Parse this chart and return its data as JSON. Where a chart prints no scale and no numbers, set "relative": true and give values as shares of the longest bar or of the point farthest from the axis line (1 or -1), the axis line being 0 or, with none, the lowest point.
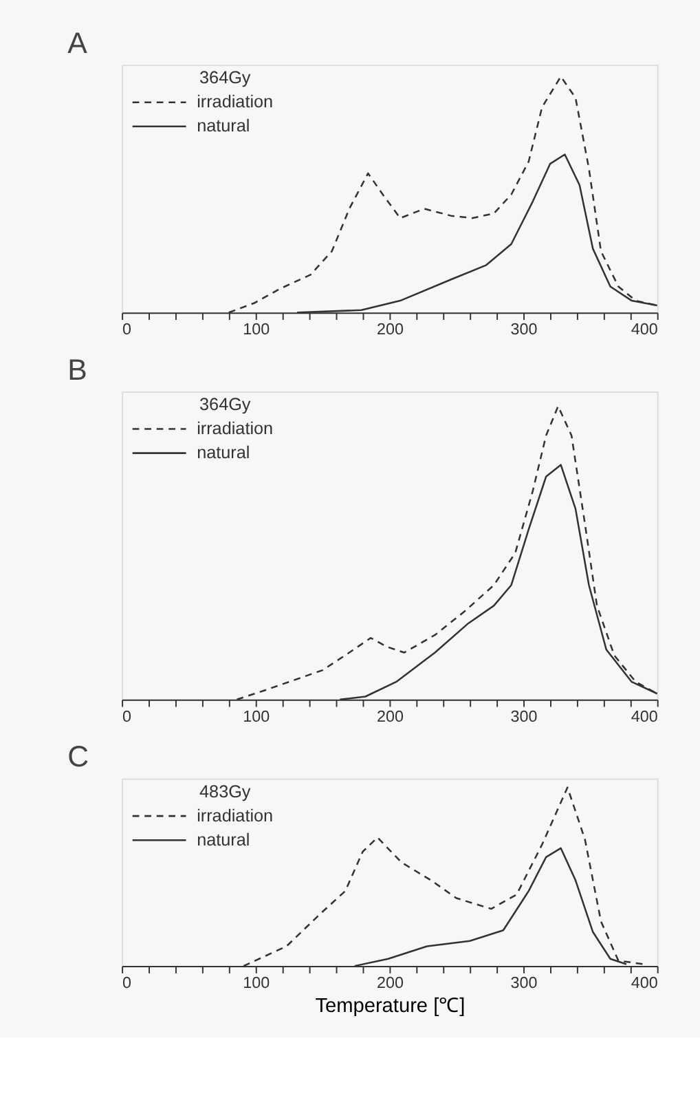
{
  "chart_data": [
    {
      "type": "line",
      "title": "A",
      "relative": true,
      "legend": "top left",
      "legend_title": "364Gy",
      "xlim": [
        0,
        400
      ],
      "xticks": [
        0,
        {
          "value": 20,
          "label": null
        },
        {
          "value": 40,
          "label": null
        },
        {
          "value": 60,
          "label": null
        },
        {
          "value": 80,
          "label": null
        },
        100,
        {
          "value": 120,
          "label": null
        },
        {
          "value": 140,
          "label": null
        },
        {
          "value": 160,
          "label": null
        },
        {
          "value": 180,
          "label": null
        },
        200,
        {
          "value": 220,
          "label": null
        },
        {
          "value": 240,
          "label": null
        },
        {
          "value": 260,
          "label": null
        },
        {
          "value": 280,
          "label": null
        },
        300,
        {
          "value": 320,
          "label": null
        },
        {
          "value": 340,
          "label": null
        },
        {
          "value": 360,
          "label": null
        },
        {
          "value": 380,
          "label": null
        },
        400
      ],
      "series": [
        {
          "name": "irradiation",
          "color": "#333333",
          "line_style": "dashed",
          "x": [
            80,
            99,
            118,
            141,
            157,
            170,
            184,
            195,
            208,
            226,
            246,
            262,
            278,
            291,
            304,
            314,
            328,
            339,
            349,
            358,
            371,
            384,
            400
          ],
          "values": [
            0,
            0.04,
            0.1,
            0.16,
            0.26,
            0.44,
            0.59,
            0.5,
            0.4,
            0.44,
            0.41,
            0.4,
            0.42,
            0.5,
            0.64,
            0.87,
            1.0,
            0.91,
            0.61,
            0.26,
            0.11,
            0.05,
            0.03
          ]
        },
        {
          "name": "natural",
          "color": "#333333",
          "line_style": "solid",
          "x": [
            131,
            179,
            208,
            246,
            272,
            291,
            307,
            320,
            331,
            342,
            352,
            365,
            381,
            400
          ],
          "values": [
            0,
            0.01,
            0.05,
            0.14,
            0.2,
            0.29,
            0.47,
            0.63,
            0.67,
            0.54,
            0.27,
            0.11,
            0.05,
            0.03
          ]
        }
      ]
    },
    {
      "type": "line",
      "title": "B",
      "relative": true,
      "legend": "top left",
      "legend_title": "364Gy",
      "xlim": [
        0,
        400
      ],
      "xticks": [
        0,
        {
          "value": 20,
          "label": null
        },
        {
          "value": 40,
          "label": null
        },
        {
          "value": 60,
          "label": null
        },
        {
          "value": 80,
          "label": null
        },
        100,
        {
          "value": 120,
          "label": null
        },
        {
          "value": 140,
          "label": null
        },
        {
          "value": 160,
          "label": null
        },
        {
          "value": 180,
          "label": null
        },
        200,
        {
          "value": 220,
          "label": null
        },
        {
          "value": 240,
          "label": null
        },
        {
          "value": 260,
          "label": null
        },
        {
          "value": 280,
          "label": null
        },
        300,
        {
          "value": 320,
          "label": null
        },
        {
          "value": 340,
          "label": null
        },
        {
          "value": 360,
          "label": null
        },
        {
          "value": 380,
          "label": null
        },
        400
      ],
      "series": [
        {
          "name": "irradiation",
          "color": "#333333",
          "line_style": "dashed",
          "x": [
            86,
            106,
            150,
            170,
            186,
            198,
            211,
            234,
            256,
            278,
            294,
            307,
            317,
            326,
            336,
            346,
            355,
            368,
            384,
            400
          ],
          "values": [
            0,
            0.03,
            0.1,
            0.16,
            0.21,
            0.18,
            0.16,
            0.22,
            0.3,
            0.39,
            0.5,
            0.71,
            0.9,
            1.0,
            0.9,
            0.6,
            0.32,
            0.15,
            0.06,
            0.02
          ]
        },
        {
          "name": "natural",
          "color": "#333333",
          "line_style": "solid",
          "x": [
            163,
            182,
            205,
            234,
            259,
            278,
            291,
            304,
            317,
            328,
            339,
            349,
            362,
            381,
            400
          ],
          "values": [
            0,
            0.01,
            0.06,
            0.16,
            0.26,
            0.32,
            0.39,
            0.58,
            0.76,
            0.8,
            0.65,
            0.39,
            0.17,
            0.06,
            0.02
          ]
        }
      ]
    },
    {
      "type": "line",
      "title": "C",
      "relative": true,
      "legend": "top left",
      "legend_title": "483Gy",
      "xlabel": "Temperature [℃]",
      "xlim": [
        0,
        400
      ],
      "xticks": [
        0,
        {
          "value": 20,
          "label": null
        },
        {
          "value": 40,
          "label": null
        },
        {
          "value": 60,
          "label": null
        },
        {
          "value": 80,
          "label": null
        },
        100,
        {
          "value": 120,
          "label": null
        },
        {
          "value": 140,
          "label": null
        },
        {
          "value": 160,
          "label": null
        },
        {
          "value": 180,
          "label": null
        },
        200,
        {
          "value": 220,
          "label": null
        },
        {
          "value": 240,
          "label": null
        },
        {
          "value": 260,
          "label": null
        },
        {
          "value": 280,
          "label": null
        },
        300,
        {
          "value": 320,
          "label": null
        },
        {
          "value": 340,
          "label": null
        },
        {
          "value": 360,
          "label": null
        },
        {
          "value": 380,
          "label": null
        },
        400
      ],
      "series": [
        {
          "name": "irradiation",
          "color": "#333333",
          "line_style": "dashed",
          "x": [
            91,
            123,
            148,
            167,
            180,
            191,
            209,
            231,
            250,
            276,
            295,
            314,
            333,
            346,
            358,
            371,
            390
          ],
          "values": [
            0,
            0.11,
            0.29,
            0.42,
            0.64,
            0.72,
            0.58,
            0.48,
            0.38,
            0.32,
            0.4,
            0.68,
            1.0,
            0.71,
            0.25,
            0.03,
            0.01
          ]
        },
        {
          "name": "natural",
          "color": "#333333",
          "line_style": "solid",
          "x": [
            174,
            199,
            228,
            260,
            285,
            304,
            317,
            328,
            339,
            352,
            365,
            377
          ],
          "values": [
            0,
            0.04,
            0.11,
            0.14,
            0.2,
            0.42,
            0.61,
            0.66,
            0.48,
            0.19,
            0.04,
            0.01
          ]
        }
      ]
    }
  ]
}
